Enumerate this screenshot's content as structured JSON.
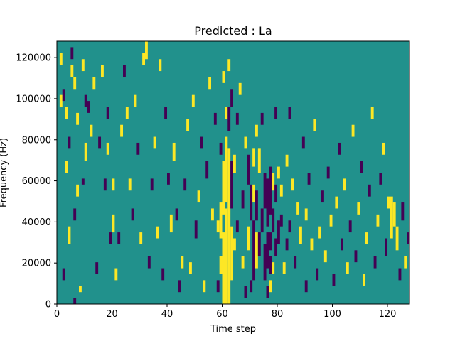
{
  "chart_data": {
    "type": "heatmap",
    "title": "Predicted : La",
    "xlabel": "Time step",
    "ylabel": "Frequency (Hz)",
    "xlim": [
      0,
      128
    ],
    "ylim": [
      0,
      128000
    ],
    "x_ticks": [
      0,
      20,
      40,
      60,
      80,
      100,
      120
    ],
    "x_tick_labels": [
      "0",
      "20",
      "40",
      "60",
      "80",
      "100",
      "120"
    ],
    "y_ticks": [
      0,
      20000,
      40000,
      60000,
      80000,
      100000,
      120000
    ],
    "y_tick_labels": [
      "0",
      "20000",
      "40000",
      "60000",
      "80000",
      "100000",
      "120000"
    ],
    "grid": false,
    "legend": "none",
    "colors": {
      "background": "#21918c",
      "high": "#fde725",
      "low": "#440154"
    },
    "value_levels": [
      0,
      1,
      2
    ],
    "background_value": 1,
    "n_time_steps": 128,
    "n_freq_bins": 44,
    "freq_bin_hz": 2909,
    "cells": [
      [
        2,
        55,
        61
      ],
      [
        2,
        58,
        61
      ],
      [
        2,
        61,
        64
      ],
      [
        2,
        64,
        66
      ],
      [
        2,
        66,
        69
      ],
      [
        2,
        58,
        62
      ],
      [
        2,
        62,
        65
      ],
      [
        2,
        68,
        71
      ],
      [
        2,
        66,
        69
      ],
      [
        2,
        53,
        60
      ],
      [
        2,
        69,
        73
      ],
      [
        2,
        71,
        75
      ],
      [
        2,
        72,
        77
      ],
      [
        2,
        59,
        60
      ],
      [
        2,
        76,
        78
      ],
      [
        2,
        75,
        77
      ],
      [
        2,
        76,
        80
      ],
      [
        2,
        88,
        90
      ],
      [
        2,
        106,
        110
      ],
      [
        2,
        110,
        113
      ],
      [
        2,
        112,
        117
      ],
      [
        2,
        117,
        120
      ],
      [
        2,
        120,
        123
      ],
      [
        2,
        118,
        120
      ],
      [
        2,
        119,
        122
      ],
      [
        2,
        121,
        122
      ],
      [
        2,
        104,
        107
      ],
      [
        2,
        3,
        5
      ],
      [
        2,
        7,
        9
      ],
      [
        2,
        12,
        14
      ],
      [
        2,
        16,
        18
      ],
      [
        2,
        21,
        23
      ],
      [
        2,
        25,
        27
      ],
      [
        2,
        31,
        33
      ],
      [
        2,
        36,
        38
      ],
      [
        2,
        40,
        42
      ],
      [
        2,
        43,
        45
      ],
      [
        2,
        47,
        49
      ],
      [
        2,
        50,
        52
      ],
      [
        2,
        88,
        92
      ],
      [
        2,
        63,
        66
      ],
      [
        2,
        77,
        78
      ],
      [
        2,
        15,
        17
      ],
      [
        2,
        19,
        21
      ],
      [
        0,
        7,
        9
      ],
      [
        0,
        11,
        13
      ],
      [
        0,
        30,
        32
      ],
      [
        0,
        34,
        36
      ],
      [
        0,
        47,
        49
      ],
      [
        0,
        70,
        72
      ],
      [
        0,
        73,
        75
      ],
      [
        0,
        74,
        76
      ],
      [
        0,
        75,
        77
      ],
      [
        0,
        77,
        79
      ],
      [
        0,
        78,
        80
      ],
      [
        0,
        79,
        81
      ],
      [
        0,
        81,
        83
      ],
      [
        0,
        83,
        85
      ],
      [
        0,
        86,
        88
      ],
      [
        0,
        89,
        91
      ],
      [
        0,
        92,
        94
      ],
      [
        0,
        96,
        98
      ],
      [
        0,
        101,
        103
      ],
      [
        0,
        103,
        105
      ],
      [
        0,
        107,
        109
      ],
      [
        0,
        110,
        112
      ],
      [
        0,
        116,
        118
      ],
      [
        0,
        118,
        120
      ],
      [
        0,
        122,
        124
      ],
      [
        0,
        124,
        126
      ],
      [
        0,
        126,
        128
      ],
      [
        0,
        2,
        4
      ],
      [
        0,
        4,
        6
      ],
      [
        0,
        14,
        16
      ],
      [
        0,
        18,
        20
      ],
      [
        0,
        22,
        24
      ],
      [
        0,
        27,
        29
      ],
      [
        0,
        39,
        41
      ],
      [
        0,
        44,
        46
      ],
      [
        0,
        54,
        56
      ],
      [
        0,
        63,
        65
      ],
      [
        0,
        67,
        69
      ],
      [
        0,
        84,
        86
      ],
      [
        0,
        94,
        96
      ],
      [
        0,
        99,
        101
      ],
      [
        0,
        113,
        115
      ],
      [
        0,
        120,
        122
      ],
      [
        0,
        125,
        127
      ]
    ]
  }
}
